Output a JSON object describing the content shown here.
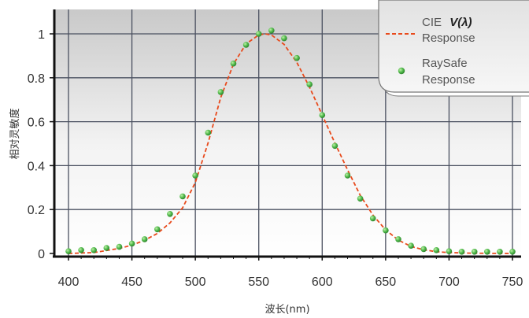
{
  "chart_data": {
    "type": "line",
    "title": "",
    "xlabel": "波长(nm)",
    "ylabel": "相对灵敏度",
    "xlim": [
      400,
      750
    ],
    "ylim": [
      0,
      1
    ],
    "xticks": [
      400,
      450,
      500,
      550,
      600,
      650,
      700,
      750
    ],
    "yticks": [
      0,
      0.2,
      0.4,
      0.6,
      0.8,
      1
    ],
    "ytick_labels": [
      "0",
      "0.2",
      "0.4",
      "0.6",
      "0.8",
      "1"
    ],
    "grid": true,
    "legend_position": "top-right",
    "legend": {
      "line_prefix": "CIE ",
      "line_symbol": "V(λ)",
      "line_suffix": "Response",
      "scatter_line1": "RaySafe",
      "scatter_line2": "Response"
    },
    "series": [
      {
        "name": "CIE V(λ) Response",
        "kind": "line",
        "color": "#e84a1c",
        "style": "dashed",
        "x": [
          400,
          420,
          440,
          450,
          460,
          470,
          480,
          490,
          500,
          510,
          520,
          530,
          540,
          550,
          555,
          560,
          570,
          580,
          590,
          600,
          610,
          620,
          630,
          640,
          650,
          660,
          670,
          680,
          690,
          700,
          720,
          750
        ],
        "y": [
          0.0,
          0.004,
          0.023,
          0.038,
          0.06,
          0.091,
          0.139,
          0.208,
          0.323,
          0.503,
          0.71,
          0.862,
          0.954,
          0.995,
          1.0,
          0.995,
          0.952,
          0.87,
          0.757,
          0.631,
          0.503,
          0.381,
          0.265,
          0.175,
          0.107,
          0.061,
          0.032,
          0.017,
          0.008,
          0.004,
          0.001,
          0.0
        ]
      },
      {
        "name": "RaySafe Response",
        "kind": "scatter",
        "color": "#3fa83f",
        "x": [
          400,
          410,
          420,
          430,
          440,
          450,
          460,
          470,
          480,
          490,
          500,
          510,
          520,
          530,
          540,
          550,
          560,
          570,
          580,
          590,
          600,
          610,
          620,
          630,
          640,
          650,
          660,
          670,
          680,
          690,
          700,
          710,
          720,
          730,
          740,
          750
        ],
        "y": [
          0.01,
          0.015,
          0.015,
          0.025,
          0.03,
          0.045,
          0.065,
          0.11,
          0.18,
          0.26,
          0.355,
          0.55,
          0.735,
          0.865,
          0.95,
          1.0,
          1.015,
          0.98,
          0.89,
          0.77,
          0.63,
          0.49,
          0.355,
          0.25,
          0.16,
          0.105,
          0.065,
          0.035,
          0.02,
          0.015,
          0.01,
          0.008,
          0.008,
          0.008,
          0.008,
          0.008
        ]
      }
    ]
  }
}
